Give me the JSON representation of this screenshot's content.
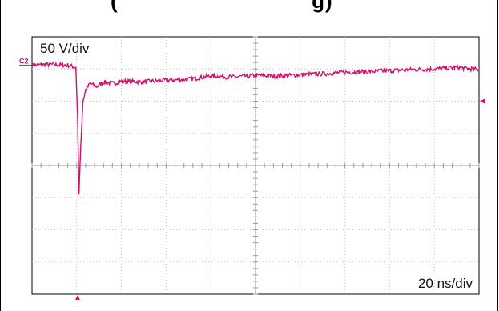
{
  "header": {
    "title_fragment": "(",
    "title_fragment_end": "g)"
  },
  "chart_data": {
    "type": "line",
    "channel_label": "C2",
    "scale_label": "50 V/div",
    "timebase_label": "20 ns/div",
    "trace_color": "#d0106e",
    "grid": true,
    "divisions": {
      "x": 10,
      "y": 8
    },
    "ylim_div": [
      -4,
      4
    ],
    "xlim_div": [
      0,
      10
    ],
    "series": [
      {
        "values_div": [
          [
            0.0,
            3.12
          ],
          [
            0.4,
            3.14
          ],
          [
            0.8,
            3.12
          ],
          [
            0.98,
            3.05
          ],
          [
            1.02,
            1.5
          ],
          [
            1.05,
            -0.9
          ],
          [
            1.09,
            0.6
          ],
          [
            1.14,
            2.0
          ],
          [
            1.2,
            2.35
          ],
          [
            1.3,
            2.55
          ],
          [
            1.45,
            2.45
          ],
          [
            1.6,
            2.6
          ],
          [
            1.8,
            2.55
          ],
          [
            2.0,
            2.62
          ],
          [
            2.5,
            2.6
          ],
          [
            3.0,
            2.65
          ],
          [
            3.5,
            2.68
          ],
          [
            4.0,
            2.78
          ],
          [
            4.5,
            2.75
          ],
          [
            5.0,
            2.8
          ],
          [
            5.5,
            2.78
          ],
          [
            6.0,
            2.82
          ],
          [
            6.5,
            2.85
          ],
          [
            7.0,
            2.9
          ],
          [
            7.5,
            2.92
          ],
          [
            8.0,
            2.95
          ],
          [
            8.5,
            2.98
          ],
          [
            9.0,
            3.0
          ],
          [
            9.5,
            3.05
          ],
          [
            10.0,
            2.98
          ]
        ]
      }
    ]
  }
}
